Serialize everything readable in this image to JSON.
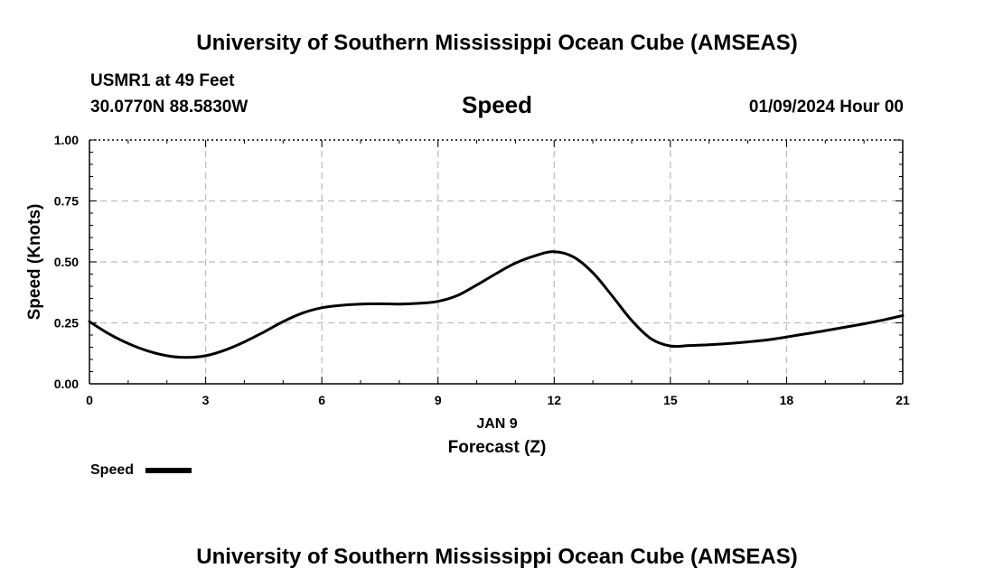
{
  "header": {
    "title": "University of Southern Mississippi Ocean Cube (AMSEAS)",
    "station": "USMR1 at 49 Feet",
    "coords": "30.0770N  88.5830W",
    "datetime": "01/09/2024 Hour 00"
  },
  "footer": {
    "title": "University of Southern Mississippi Ocean Cube (AMSEAS)"
  },
  "legend": {
    "label": "Speed"
  },
  "colors": {
    "line": "#000000",
    "grid": "#bdbdbd"
  },
  "chart_data": {
    "type": "line",
    "title": "Speed",
    "xlabel": "Forecast (Z)",
    "xlabel_date": "JAN 9",
    "ylabel": "Speed (Knots)",
    "xlim": [
      0,
      21
    ],
    "ylim": [
      0,
      1
    ],
    "xticks": [
      0,
      3,
      6,
      9,
      12,
      15,
      18,
      21
    ],
    "xtick_labels": [
      "0",
      "3",
      "6",
      "9",
      "12",
      "15",
      "18",
      "21"
    ],
    "yticks": [
      0,
      0.25,
      0.5,
      0.75,
      1
    ],
    "ytick_labels": [
      "0.00",
      "0.25",
      "0.50",
      "0.75",
      "1.00"
    ],
    "grid": true,
    "series": [
      {
        "name": "Speed",
        "x": [
          0,
          0.5,
          1,
          1.5,
          2,
          2.5,
          3,
          3.5,
          4,
          4.5,
          5,
          5.5,
          6,
          6.5,
          7,
          7.5,
          8,
          8.5,
          9,
          9.5,
          10,
          10.5,
          11,
          11.5,
          12,
          12.5,
          13,
          13.5,
          14,
          14.5,
          15,
          15.5,
          16,
          16.5,
          17,
          17.5,
          18,
          18.5,
          19,
          19.5,
          20,
          20.5,
          21
        ],
        "values": [
          0.255,
          0.205,
          0.165,
          0.135,
          0.115,
          0.108,
          0.115,
          0.138,
          0.172,
          0.212,
          0.255,
          0.29,
          0.312,
          0.322,
          0.327,
          0.328,
          0.327,
          0.33,
          0.338,
          0.362,
          0.405,
          0.452,
          0.495,
          0.525,
          0.542,
          0.52,
          0.455,
          0.36,
          0.26,
          0.185,
          0.155,
          0.157,
          0.16,
          0.165,
          0.172,
          0.18,
          0.192,
          0.205,
          0.218,
          0.232,
          0.246,
          0.262,
          0.28
        ]
      }
    ]
  }
}
